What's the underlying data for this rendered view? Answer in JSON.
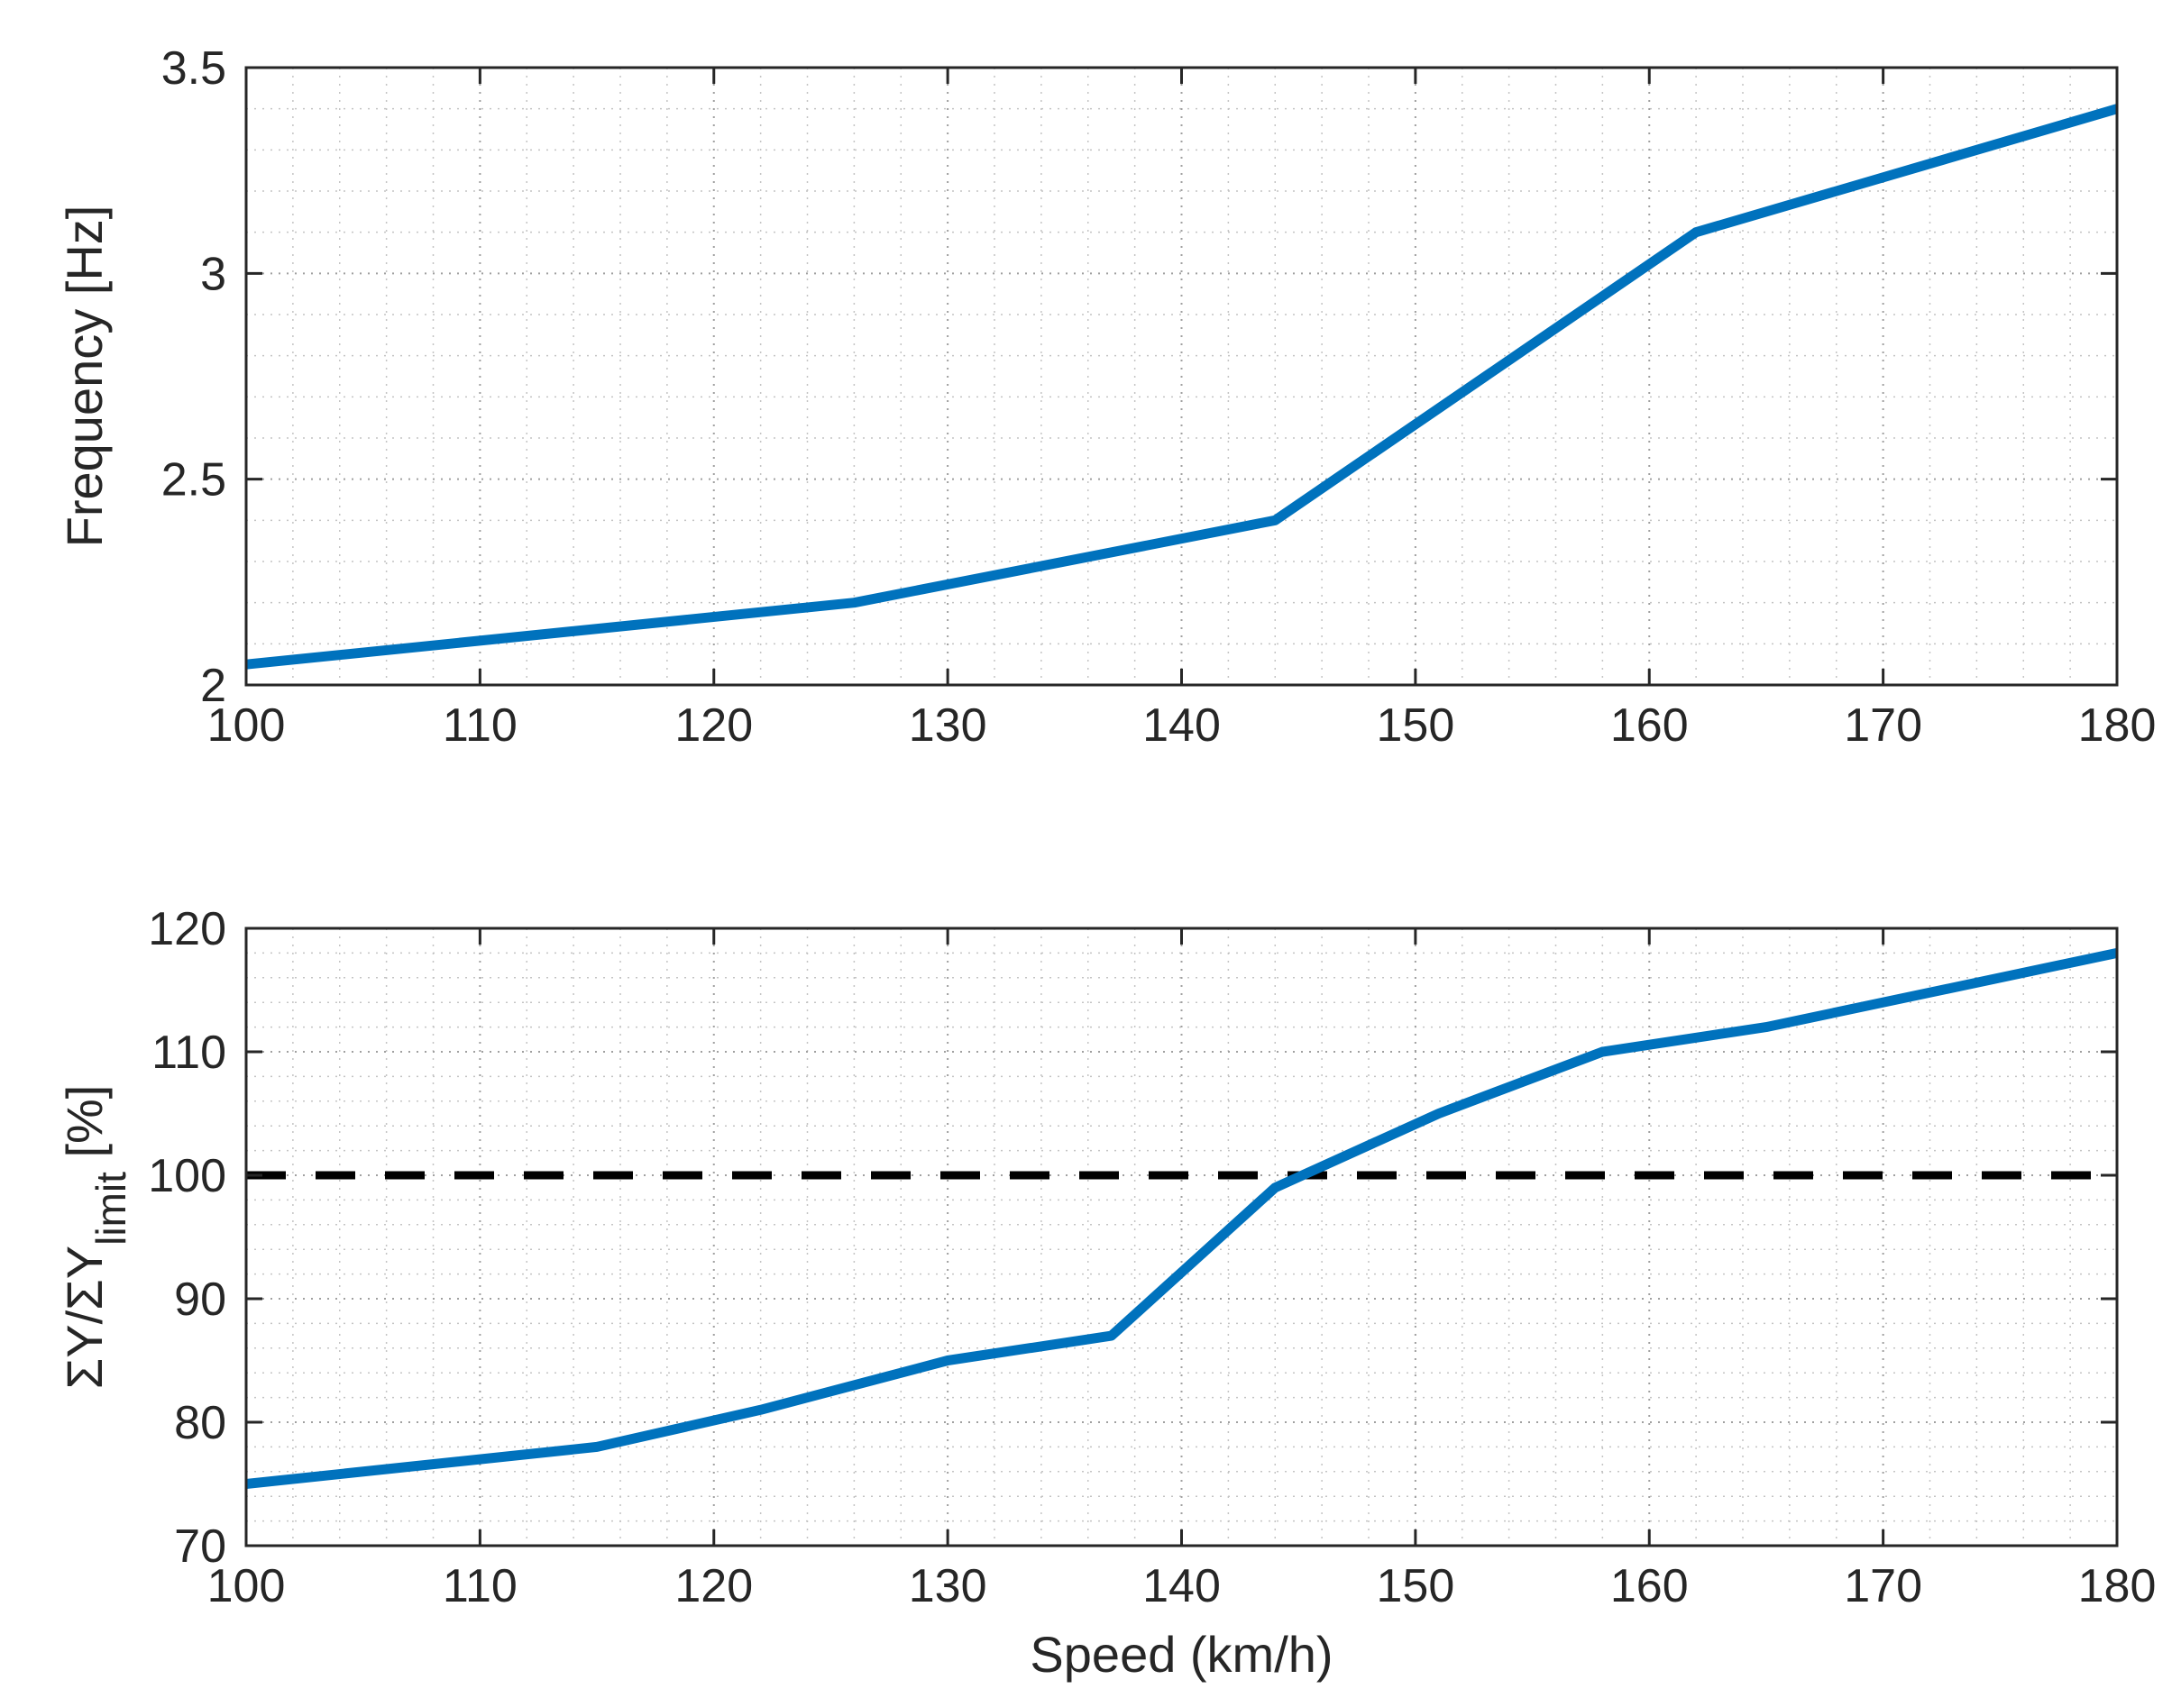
{
  "chart_data": [
    {
      "type": "line",
      "xlabel": "",
      "ylabel": "Frequency [Hz]",
      "xlim": [
        100,
        180
      ],
      "ylim": [
        2,
        3.5
      ],
      "xticks": [
        100,
        110,
        120,
        130,
        140,
        150,
        160,
        170,
        180
      ],
      "yticks": [
        2,
        2.5,
        3,
        3.5
      ],
      "xtick_labels": [
        "100",
        "110",
        "120",
        "130",
        "140",
        "150",
        "160",
        "170",
        "180"
      ],
      "ytick_labels": [
        "2",
        "2.5",
        "3",
        "3.5"
      ],
      "grid": "major and minor, dotted",
      "series": [
        {
          "color": "#0072BD",
          "x": [
            100,
            126,
            144,
            162,
            180
          ],
          "y": [
            2.05,
            2.2,
            2.4,
            3.1,
            3.4
          ]
        }
      ]
    },
    {
      "type": "line",
      "xlabel": "Speed (km/h)",
      "ylabel": "ΣY/ΣY",
      "ylabel_subscript": "limit",
      "ylabel_suffix": " [%]",
      "xlim": [
        100,
        180
      ],
      "ylim": [
        70,
        120
      ],
      "xticks": [
        100,
        110,
        120,
        130,
        140,
        150,
        160,
        170,
        180
      ],
      "yticks": [
        70,
        80,
        90,
        100,
        110,
        120
      ],
      "xtick_labels": [
        "100",
        "110",
        "120",
        "130",
        "140",
        "150",
        "160",
        "170",
        "180"
      ],
      "ytick_labels": [
        "70",
        "80",
        "90",
        "100",
        "110",
        "120"
      ],
      "grid": "major and minor, dotted",
      "series": [
        {
          "color": "#0072BD",
          "x": [
            100,
            115,
            122,
            130,
            137,
            144,
            151,
            158,
            165,
            180
          ],
          "y": [
            75,
            78,
            81,
            85,
            87,
            99,
            105,
            110,
            112,
            118
          ]
        }
      ],
      "reference_line": {
        "y": 100,
        "style": "dashed",
        "color": "#000000"
      }
    }
  ]
}
